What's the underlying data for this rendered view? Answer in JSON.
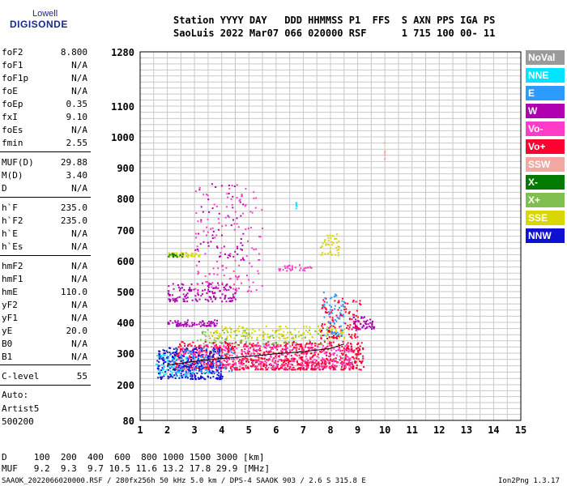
{
  "logo": {
    "line1": "Lowell",
    "line2": "DIGISONDE"
  },
  "header": {
    "labels": "Station YYYY DAY   DDD HHMMSS P1  FFS  S AXN PPS IGA PS",
    "values": "SaoLuis 2022 Mar07 066 020000 RSF      1 715 100 00- 11"
  },
  "params": [
    {
      "name": "foF2",
      "value": "8.800"
    },
    {
      "name": "foF1",
      "value": "N/A"
    },
    {
      "name": "foF1p",
      "value": "N/A"
    },
    {
      "name": "foE",
      "value": "N/A"
    },
    {
      "name": "foEp",
      "value": "0.35"
    },
    {
      "name": "fxI",
      "value": "9.10"
    },
    {
      "name": "foEs",
      "value": "N/A"
    },
    {
      "name": "fmin",
      "value": "2.55"
    },
    {
      "name": "MUF(D)",
      "value": "29.88"
    },
    {
      "name": "M(D)",
      "value": "3.40"
    },
    {
      "name": "D",
      "value": "N/A"
    },
    {
      "name": "h`F",
      "value": "235.0"
    },
    {
      "name": "h`F2",
      "value": "235.0"
    },
    {
      "name": "h`E",
      "value": "N/A"
    },
    {
      "name": "h`Es",
      "value": "N/A"
    },
    {
      "name": "hmF2",
      "value": "N/A"
    },
    {
      "name": "hmF1",
      "value": "N/A"
    },
    {
      "name": "hmE",
      "value": "110.0"
    },
    {
      "name": "yF2",
      "value": "N/A"
    },
    {
      "name": "yF1",
      "value": "N/A"
    },
    {
      "name": "yE",
      "value": "20.0"
    },
    {
      "name": "B0",
      "value": "N/A"
    },
    {
      "name": "B1",
      "value": "N/A"
    },
    {
      "name": "C-level",
      "value": "55"
    }
  ],
  "auto": {
    "line1": "Auto:",
    "line2": "Artist5",
    "line3": "500200"
  },
  "bottom": {
    "d_row": "D     100  200  400  600  800 1000 1500 3000 [km]",
    "muf_row": "MUF   9.2  9.3  9.7 10.5 11.6 13.2 17.8 29.9 [MHz]",
    "file_line": "SAAOK_2022066020000.RSF / 280fx256h 50 kHz 5.0 km / DPS-4 SAAOK 903 / 2.6 S 315.8 E",
    "version": "Ion2Png 1.3.17"
  },
  "legend": [
    {
      "label": "NoVal",
      "color": "#9a9a9a"
    },
    {
      "label": "NNE",
      "color": "#00e5ff"
    },
    {
      "label": "E",
      "color": "#2b9bff"
    },
    {
      "label": "W",
      "color": "#b000b0"
    },
    {
      "label": "Vo-",
      "color": "#ff3cc8"
    },
    {
      "label": "Vo+",
      "color": "#ff0033"
    },
    {
      "label": "SSW",
      "color": "#f0a8a0"
    },
    {
      "label": "X-",
      "color": "#007a00"
    },
    {
      "label": "X+",
      "color": "#7fbf50"
    },
    {
      "label": "SSE",
      "color": "#d8d800"
    },
    {
      "label": "NNW",
      "color": "#1010d0"
    }
  ],
  "chart_data": {
    "type": "scatter",
    "x_ticks": [
      "1",
      "2",
      "3",
      "4",
      "5",
      "6",
      "7",
      "8",
      "9",
      "10",
      "11",
      "12",
      "13",
      "14",
      "15"
    ],
    "y_ticks": [
      "80",
      "200",
      "300",
      "400",
      "500",
      "600",
      "700",
      "800",
      "900",
      "1000",
      "1100",
      "1280"
    ],
    "xlim": [
      1,
      15
    ],
    "y_tick_values": [
      80,
      200,
      300,
      400,
      500,
      600,
      700,
      800,
      900,
      1000,
      1100,
      1280
    ],
    "y_scale": "non-linear (ionogram virtual height)",
    "grid": true,
    "clusters": [
      {
        "direction": "Vo+",
        "x": [
          2.2,
          9.2
        ],
        "y": [
          250,
          340
        ],
        "density": 900
      },
      {
        "direction": "Vo-",
        "x": [
          2.4,
          8.8
        ],
        "y": [
          255,
          330
        ],
        "density": 350
      },
      {
        "direction": "NNW",
        "x": [
          1.6,
          4.0
        ],
        "y": [
          220,
          320
        ],
        "density": 300
      },
      {
        "direction": "NNE",
        "x": [
          1.5,
          3.5
        ],
        "y": [
          230,
          300
        ],
        "density": 80
      },
      {
        "direction": "E",
        "x": [
          2.0,
          4.5
        ],
        "y": [
          240,
          320
        ],
        "density": 70
      },
      {
        "direction": "SSE",
        "x": [
          3.5,
          8.5
        ],
        "y": [
          350,
          390
        ],
        "density": 150
      },
      {
        "direction": "X+",
        "x": [
          3.0,
          8.0
        ],
        "y": [
          330,
          380
        ],
        "density": 90
      },
      {
        "direction": "W",
        "x": [
          2.0,
          4.5
        ],
        "y": [
          470,
          530
        ],
        "density": 140
      },
      {
        "direction": "W",
        "x": [
          2.0,
          3.8
        ],
        "y": [
          390,
          410
        ],
        "density": 80
      },
      {
        "direction": "SSE",
        "x": [
          2.0,
          3.2
        ],
        "y": [
          615,
          630
        ],
        "density": 50
      },
      {
        "direction": "X-",
        "x": [
          2.0,
          2.6
        ],
        "y": [
          615,
          625
        ],
        "density": 15
      },
      {
        "direction": "Vo-",
        "x": [
          6.0,
          7.3
        ],
        "y": [
          570,
          590
        ],
        "density": 30
      },
      {
        "direction": "SSE",
        "x": [
          7.6,
          8.3
        ],
        "y": [
          620,
          690
        ],
        "density": 45
      },
      {
        "direction": "Vo+",
        "x": [
          7.6,
          9.1
        ],
        "y": [
          350,
          480
        ],
        "density": 120
      },
      {
        "direction": "E",
        "x": [
          7.7,
          8.5
        ],
        "y": [
          360,
          500
        ],
        "density": 60
      },
      {
        "direction": "W",
        "x": [
          8.8,
          9.6
        ],
        "y": [
          380,
          420
        ],
        "density": 50
      },
      {
        "direction": "Vo-",
        "x": [
          3.0,
          5.5
        ],
        "y": [
          500,
          850
        ],
        "density": 140
      },
      {
        "direction": "W",
        "x": [
          3.0,
          4.8
        ],
        "y": [
          600,
          850
        ],
        "density": 60
      },
      {
        "direction": "NNE",
        "x": [
          6.7,
          6.75
        ],
        "y": [
          770,
          790
        ],
        "density": 6
      },
      {
        "direction": "SSW",
        "x": [
          9.95,
          10.0
        ],
        "y": [
          930,
          990
        ],
        "density": 6
      }
    ],
    "trace": {
      "x": [
        2.0,
        3.0,
        4.0,
        5.0,
        6.0,
        7.0,
        8.0,
        8.5
      ],
      "y": [
        262,
        274,
        283,
        290,
        298,
        305,
        315,
        330
      ]
    }
  }
}
